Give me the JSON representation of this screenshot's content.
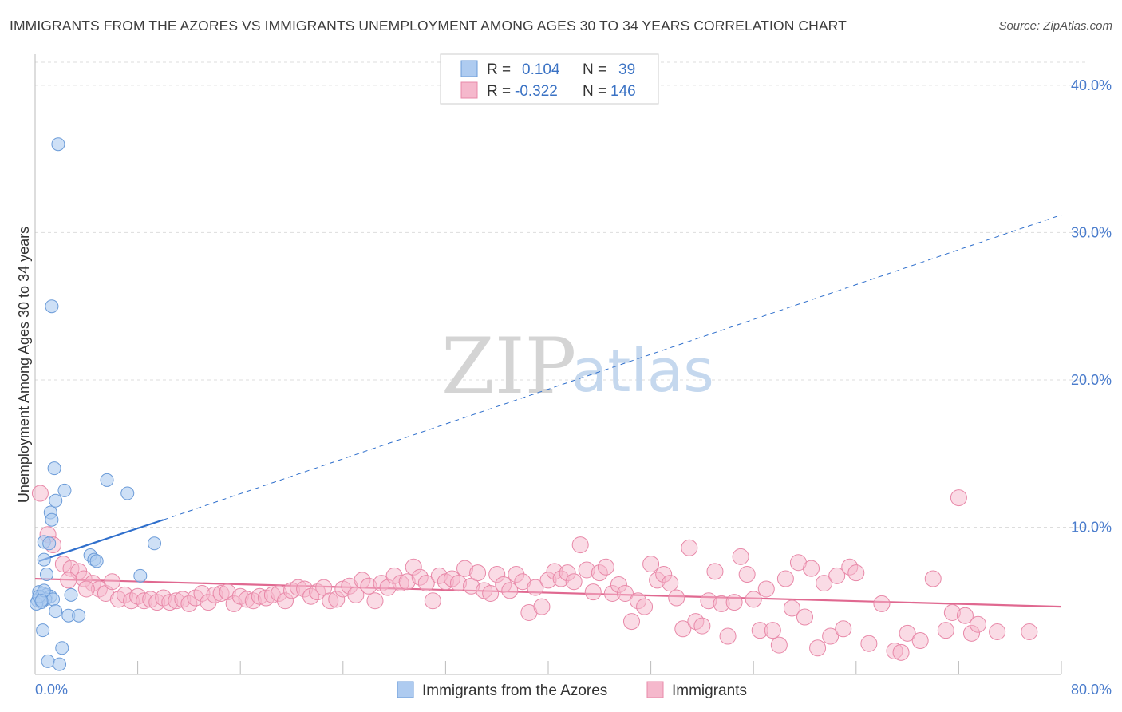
{
  "title": "IMMIGRANTS FROM THE AZORES VS IMMIGRANTS UNEMPLOYMENT AMONG AGES 30 TO 34 YEARS CORRELATION CHART",
  "source": "Source: ZipAtlas.com",
  "watermark": {
    "zip": "ZIP",
    "atlas": "atlas"
  },
  "colors": {
    "blue_fill": "#aecbf0",
    "blue_stroke": "#6b9bd8",
    "blue_line": "#2f6fcc",
    "pink_fill": "#f5b8cc",
    "pink_stroke": "#e888a8",
    "pink_line": "#e06890",
    "grid": "#dddddd",
    "axis_text": "#4a7ccc"
  },
  "legend": {
    "rows": [
      {
        "series": "blue",
        "r_label": "R =",
        "r_value": "0.104",
        "n_label": "N =",
        "n_value": "39"
      },
      {
        "series": "pink",
        "r_label": "R =",
        "r_value": "-0.322",
        "n_label": "N =",
        "n_value": "146"
      }
    ]
  },
  "bottom_legend": [
    "Immigrants from the Azores",
    "Immigrants"
  ],
  "chart_data": {
    "type": "scatter",
    "title": "IMMIGRANTS FROM THE AZORES VS IMMIGRANTS UNEMPLOYMENT AMONG AGES 30 TO 34 YEARS CORRELATION CHART",
    "xlabel": "",
    "ylabel": "Unemployment Among Ages 30 to 34 years",
    "xlim": [
      0,
      80
    ],
    "ylim": [
      0,
      42
    ],
    "x_tick_labels": [
      "0.0%",
      "80.0%"
    ],
    "y_ticks": [
      10,
      20,
      30,
      40
    ],
    "y_tick_labels": [
      "10.0%",
      "20.0%",
      "30.0%",
      "40.0%"
    ],
    "series": [
      {
        "name": "Immigrants from the Azores",
        "color": "blue",
        "points": [
          [
            1.8,
            36.0
          ],
          [
            1.3,
            25.0
          ],
          [
            1.5,
            14.0
          ],
          [
            2.3,
            12.5
          ],
          [
            1.6,
            11.8
          ],
          [
            1.2,
            11.0
          ],
          [
            1.3,
            10.5
          ],
          [
            5.6,
            13.2
          ],
          [
            7.2,
            12.3
          ],
          [
            0.7,
            9.0
          ],
          [
            1.1,
            8.9
          ],
          [
            0.7,
            7.8
          ],
          [
            4.3,
            8.1
          ],
          [
            4.6,
            7.8
          ],
          [
            4.8,
            7.7
          ],
          [
            9.3,
            8.9
          ],
          [
            0.9,
            6.8
          ],
          [
            8.2,
            6.7
          ],
          [
            0.3,
            5.6
          ],
          [
            0.6,
            5.5
          ],
          [
            0.9,
            5.4
          ],
          [
            1.2,
            5.3
          ],
          [
            0.4,
            5.2
          ],
          [
            0.8,
            5.1
          ],
          [
            0.2,
            5.0
          ],
          [
            0.5,
            4.9
          ],
          [
            0.1,
            4.8
          ],
          [
            1.4,
            5.1
          ],
          [
            2.8,
            5.4
          ],
          [
            1.6,
            4.3
          ],
          [
            2.6,
            4.0
          ],
          [
            3.4,
            4.0
          ],
          [
            0.6,
            3.0
          ],
          [
            2.1,
            1.8
          ],
          [
            1.0,
            0.9
          ],
          [
            1.9,
            0.7
          ],
          [
            0.3,
            5.3
          ],
          [
            0.7,
            5.7
          ],
          [
            0.5,
            5.0
          ]
        ]
      },
      {
        "name": "Immigrants",
        "color": "pink",
        "points": [
          [
            0.4,
            12.3
          ],
          [
            1.0,
            9.5
          ],
          [
            1.4,
            8.8
          ],
          [
            2.2,
            7.5
          ],
          [
            2.8,
            7.2
          ],
          [
            3.4,
            7.0
          ],
          [
            3.8,
            6.5
          ],
          [
            4.5,
            6.2
          ],
          [
            5.0,
            5.8
          ],
          [
            5.5,
            5.5
          ],
          [
            6.0,
            6.3
          ],
          [
            6.5,
            5.1
          ],
          [
            7.0,
            5.4
          ],
          [
            7.5,
            5.0
          ],
          [
            8.0,
            5.3
          ],
          [
            8.5,
            5.0
          ],
          [
            9.0,
            5.1
          ],
          [
            9.5,
            4.9
          ],
          [
            10.0,
            5.2
          ],
          [
            10.5,
            4.9
          ],
          [
            11.0,
            5.0
          ],
          [
            11.5,
            5.1
          ],
          [
            12.0,
            4.8
          ],
          [
            12.5,
            5.2
          ],
          [
            13.0,
            5.5
          ],
          [
            13.5,
            4.9
          ],
          [
            14.0,
            5.4
          ],
          [
            14.5,
            5.5
          ],
          [
            15.0,
            5.6
          ],
          [
            15.5,
            4.8
          ],
          [
            16.0,
            5.3
          ],
          [
            16.5,
            5.1
          ],
          [
            17.0,
            5.0
          ],
          [
            17.5,
            5.3
          ],
          [
            18.0,
            5.2
          ],
          [
            18.5,
            5.4
          ],
          [
            19.0,
            5.5
          ],
          [
            19.5,
            5.0
          ],
          [
            20.0,
            5.7
          ],
          [
            20.5,
            5.9
          ],
          [
            21.0,
            5.8
          ],
          [
            21.5,
            5.3
          ],
          [
            22.0,
            5.6
          ],
          [
            22.5,
            5.9
          ],
          [
            23.0,
            5.0
          ],
          [
            23.5,
            5.1
          ],
          [
            24.0,
            5.8
          ],
          [
            24.5,
            6.0
          ],
          [
            25.0,
            5.4
          ],
          [
            25.5,
            6.4
          ],
          [
            26.0,
            6.0
          ],
          [
            26.5,
            5.0
          ],
          [
            27.0,
            6.2
          ],
          [
            27.5,
            5.9
          ],
          [
            28.0,
            6.7
          ],
          [
            28.5,
            6.2
          ],
          [
            29.0,
            6.3
          ],
          [
            29.5,
            7.3
          ],
          [
            30.0,
            6.6
          ],
          [
            30.5,
            6.2
          ],
          [
            31.0,
            5.0
          ],
          [
            31.5,
            6.7
          ],
          [
            32.0,
            6.3
          ],
          [
            32.5,
            6.5
          ],
          [
            33.0,
            6.2
          ],
          [
            33.5,
            7.2
          ],
          [
            34.0,
            6.0
          ],
          [
            34.5,
            6.9
          ],
          [
            35.0,
            5.7
          ],
          [
            35.5,
            5.5
          ],
          [
            36.0,
            6.8
          ],
          [
            36.5,
            6.1
          ],
          [
            37.0,
            5.7
          ],
          [
            37.5,
            6.8
          ],
          [
            38.0,
            6.3
          ],
          [
            38.5,
            4.2
          ],
          [
            39.0,
            5.9
          ],
          [
            39.5,
            4.6
          ],
          [
            40.0,
            6.4
          ],
          [
            40.5,
            7.0
          ],
          [
            41.0,
            6.5
          ],
          [
            41.5,
            6.9
          ],
          [
            42.0,
            6.3
          ],
          [
            42.5,
            8.8
          ],
          [
            43.0,
            7.1
          ],
          [
            43.5,
            5.6
          ],
          [
            44.0,
            6.9
          ],
          [
            44.5,
            7.3
          ],
          [
            45.0,
            5.5
          ],
          [
            45.5,
            6.1
          ],
          [
            46.0,
            5.5
          ],
          [
            46.5,
            3.6
          ],
          [
            47.0,
            5.0
          ],
          [
            47.5,
            4.6
          ],
          [
            48.0,
            7.5
          ],
          [
            48.5,
            6.4
          ],
          [
            49.0,
            6.8
          ],
          [
            49.5,
            6.2
          ],
          [
            50.0,
            5.2
          ],
          [
            50.5,
            3.1
          ],
          [
            51.0,
            8.6
          ],
          [
            51.5,
            3.6
          ],
          [
            52.0,
            3.3
          ],
          [
            52.5,
            5.0
          ],
          [
            53.0,
            7.0
          ],
          [
            53.5,
            4.8
          ],
          [
            54.0,
            2.6
          ],
          [
            54.5,
            4.9
          ],
          [
            55.0,
            8.0
          ],
          [
            55.5,
            6.8
          ],
          [
            56.0,
            5.1
          ],
          [
            56.5,
            3.0
          ],
          [
            57.0,
            5.8
          ],
          [
            57.5,
            3.0
          ],
          [
            58.0,
            2.0
          ],
          [
            58.5,
            6.5
          ],
          [
            59.0,
            4.5
          ],
          [
            59.5,
            7.6
          ],
          [
            60.0,
            3.9
          ],
          [
            60.5,
            7.2
          ],
          [
            61.0,
            1.8
          ],
          [
            61.5,
            6.2
          ],
          [
            62.0,
            2.6
          ],
          [
            62.5,
            6.7
          ],
          [
            63.0,
            3.1
          ],
          [
            63.5,
            7.3
          ],
          [
            64.0,
            6.9
          ],
          [
            65.0,
            2.1
          ],
          [
            66.0,
            4.8
          ],
          [
            67.0,
            1.6
          ],
          [
            67.5,
            1.5
          ],
          [
            68.0,
            2.8
          ],
          [
            69.0,
            2.3
          ],
          [
            70.0,
            6.5
          ],
          [
            71.0,
            3.0
          ],
          [
            71.5,
            4.2
          ],
          [
            72.0,
            12.0
          ],
          [
            72.5,
            4.0
          ],
          [
            73.0,
            2.8
          ],
          [
            73.5,
            3.4
          ],
          [
            75.0,
            2.9
          ],
          [
            77.5,
            2.9
          ],
          [
            2.6,
            6.4
          ],
          [
            4.0,
            5.8
          ]
        ]
      }
    ],
    "trendlines": [
      {
        "series": "Immigrants from the Azores",
        "x": [
          0.3,
          10.0
        ],
        "y": [
          7.7,
          10.5
        ],
        "style": "solid"
      },
      {
        "series": "Immigrants from the Azores",
        "x": [
          10.0,
          80.0
        ],
        "y": [
          10.5,
          31.2
        ],
        "style": "dashed"
      },
      {
        "series": "Immigrants",
        "x": [
          0.0,
          80.0
        ],
        "y": [
          6.5,
          4.6
        ],
        "style": "solid"
      }
    ]
  }
}
